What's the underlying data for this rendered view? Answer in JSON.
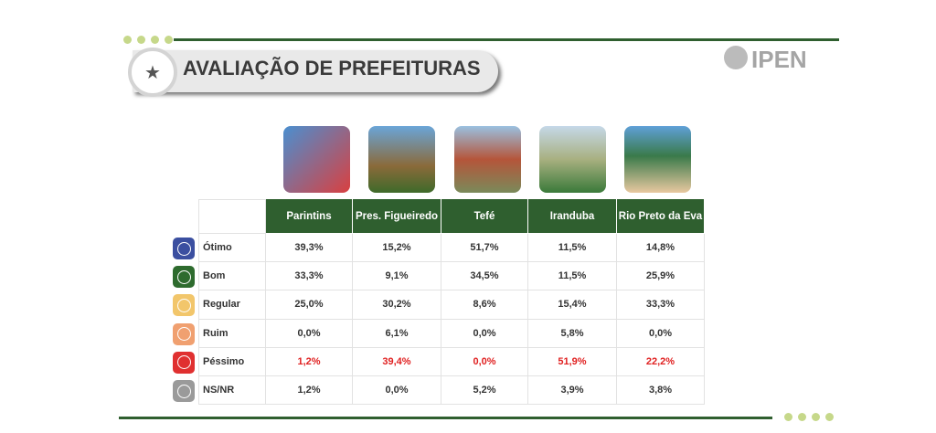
{
  "header": {
    "title": "AVALIAÇÃO DE PREFEITURAS",
    "logo": "IPEN"
  },
  "table": {
    "columns": [
      "Parintins",
      "Pres. Figueiredo",
      "Tefé",
      "Iranduba",
      "Rio Preto da Eva"
    ],
    "rows": [
      {
        "label": "Ótimo",
        "cells": [
          "39,3%",
          "15,2%",
          "51,7%",
          "11,5%",
          "14,8%"
        ]
      },
      {
        "label": "Bom",
        "cells": [
          "33,3%",
          "9,1%",
          "34,5%",
          "11,5%",
          "25,9%"
        ]
      },
      {
        "label": "Regular",
        "cells": [
          "25,0%",
          "30,2%",
          "8,6%",
          "15,4%",
          "33,3%"
        ]
      },
      {
        "label": "Ruim",
        "cells": [
          "0,0%",
          "6,1%",
          "0,0%",
          "5,8%",
          "0,0%"
        ]
      },
      {
        "label": "Péssimo",
        "cells": [
          "1,2%",
          "39,4%",
          "0,0%",
          "51,9%",
          "22,2%"
        ]
      },
      {
        "label": "NS/NR",
        "cells": [
          "1,2%",
          "0,0%",
          "5,2%",
          "3,9%",
          "3,8%"
        ]
      }
    ]
  }
}
